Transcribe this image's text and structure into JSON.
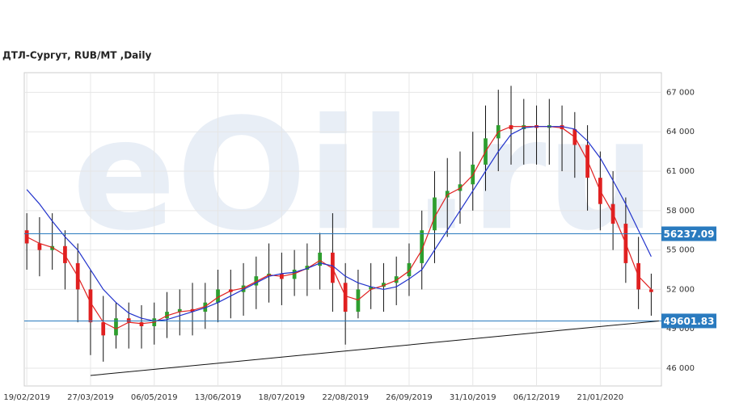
{
  "chart_data": {
    "type": "candlestick",
    "title": "ДТЛ-Сургут,  RUB/MT ,Daily",
    "watermark": "eOil.ru",
    "xlim": [
      -0.2,
      49.8
    ],
    "xticks": [
      {
        "value": 0,
        "label": "19/02/2019"
      },
      {
        "value": 5,
        "label": "27/03/2019"
      },
      {
        "value": 10,
        "label": "06/05/2019"
      },
      {
        "value": 15,
        "label": "13/06/2019"
      },
      {
        "value": 20,
        "label": "18/07/2019"
      },
      {
        "value": 25,
        "label": "22/08/2019"
      },
      {
        "value": 30,
        "label": "26/09/2019"
      },
      {
        "value": 35,
        "label": "31/10/2019"
      },
      {
        "value": 40,
        "label": "06/12/2019"
      },
      {
        "value": 45,
        "label": "21/01/2020"
      }
    ],
    "ylim": [
      44650,
      68500
    ],
    "yticks": [
      {
        "value": 46000,
        "label": "46 000"
      },
      {
        "value": 49000,
        "label": "49 000"
      },
      {
        "value": 52000,
        "label": "52 000"
      },
      {
        "value": 55000,
        "label": "55 000"
      },
      {
        "value": 58000,
        "label": "58 000"
      },
      {
        "value": 61000,
        "label": "61 000"
      },
      {
        "value": 64000,
        "label": "64 000"
      },
      {
        "value": 67000,
        "label": "67 000"
      }
    ],
    "grid": true,
    "up_color": "#2e9e2e",
    "down_color": "#e02020",
    "wick_color": "#111111",
    "open": [
      56500,
      55500,
      55000,
      55300,
      54000,
      52000,
      49500,
      48500,
      49800,
      49500,
      49200,
      49800,
      50300,
      50500,
      50300,
      51000,
      52000,
      51800,
      52300,
      53000,
      53200,
      52800,
      53500,
      53800,
      54800,
      52500,
      50300,
      52000,
      52200,
      52500,
      53000,
      54000,
      56500,
      59000,
      59500,
      60000,
      61500,
      63500,
      64500,
      64200,
      64500,
      64300,
      64500,
      64200,
      63000,
      60500,
      58500,
      57000,
      54000,
      52000
    ],
    "high": [
      57800,
      57500,
      57800,
      56500,
      55500,
      53500,
      51500,
      51000,
      51000,
      50800,
      51000,
      51800,
      52000,
      52500,
      52500,
      53500,
      53500,
      54000,
      54500,
      55500,
      54800,
      55000,
      55500,
      56300,
      57800,
      54000,
      53500,
      54000,
      54000,
      54500,
      55500,
      58000,
      61000,
      62000,
      62500,
      64000,
      66000,
      67200,
      67500,
      66500,
      66000,
      66500,
      66000,
      65500,
      64500,
      62500,
      61000,
      59000,
      56000,
      53200
    ],
    "low": [
      53500,
      53000,
      53500,
      52000,
      49500,
      47000,
      46500,
      47500,
      47500,
      47500,
      47800,
      48300,
      48500,
      48500,
      49000,
      49500,
      49800,
      50000,
      50500,
      51000,
      50800,
      51500,
      51500,
      52000,
      50300,
      47800,
      49800,
      50500,
      50300,
      50800,
      51500,
      52000,
      54000,
      56000,
      57000,
      58000,
      59500,
      61000,
      61500,
      61500,
      61500,
      61500,
      61000,
      60500,
      58000,
      56500,
      55000,
      52500,
      50500,
      50000
    ],
    "close": [
      55500,
      55000,
      55300,
      54000,
      52000,
      49500,
      48500,
      49800,
      49500,
      49200,
      49800,
      50300,
      50500,
      50300,
      51000,
      52000,
      51800,
      52300,
      53000,
      53200,
      52800,
      53500,
      53800,
      54800,
      52500,
      50300,
      52000,
      52200,
      52500,
      53000,
      54000,
      56500,
      59000,
      59500,
      60000,
      61500,
      63500,
      64500,
      64200,
      64500,
      64300,
      64500,
      64200,
      63000,
      60500,
      58500,
      57000,
      54000,
      52000,
      51800
    ],
    "series": [
      {
        "color": "#e02020",
        "values": [
          56000,
          55500,
          55200,
          54600,
          53000,
          51000,
          49500,
          49000,
          49500,
          49400,
          49500,
          50000,
          50300,
          50400,
          50700,
          51400,
          51900,
          52100,
          52600,
          53100,
          53000,
          53200,
          53600,
          54200,
          53600,
          51500,
          51200,
          52000,
          52300,
          52700,
          53400,
          55000,
          57500,
          59200,
          59700,
          60700,
          62500,
          64000,
          64400,
          64400,
          64400,
          64400,
          64300,
          63600,
          61800,
          59500,
          57800,
          55500,
          53000,
          52000
        ]
      },
      {
        "color": "#2233cc",
        "values": [
          59600,
          58500,
          57200,
          56000,
          55000,
          53500,
          52000,
          51000,
          50200,
          49800,
          49600,
          49700,
          50000,
          50300,
          50600,
          51000,
          51500,
          52000,
          52500,
          53000,
          53200,
          53300,
          53600,
          54000,
          53800,
          53000,
          52500,
          52200,
          52000,
          52200,
          52800,
          53500,
          55000,
          56500,
          58000,
          59500,
          61000,
          62500,
          63800,
          64300,
          64400,
          64400,
          64400,
          64200,
          63300,
          62000,
          60300,
          58500,
          56500,
          54500
        ]
      }
    ],
    "levels": [
      {
        "value": 56237.09,
        "label": "56237.09"
      },
      {
        "value": 49601.83,
        "label": "49601.83"
      }
    ],
    "level_color": "#2a7bbf",
    "trend_line": {
      "x": [
        5,
        49.6
      ],
      "start": 45450,
      "color": "#111111"
    }
  }
}
